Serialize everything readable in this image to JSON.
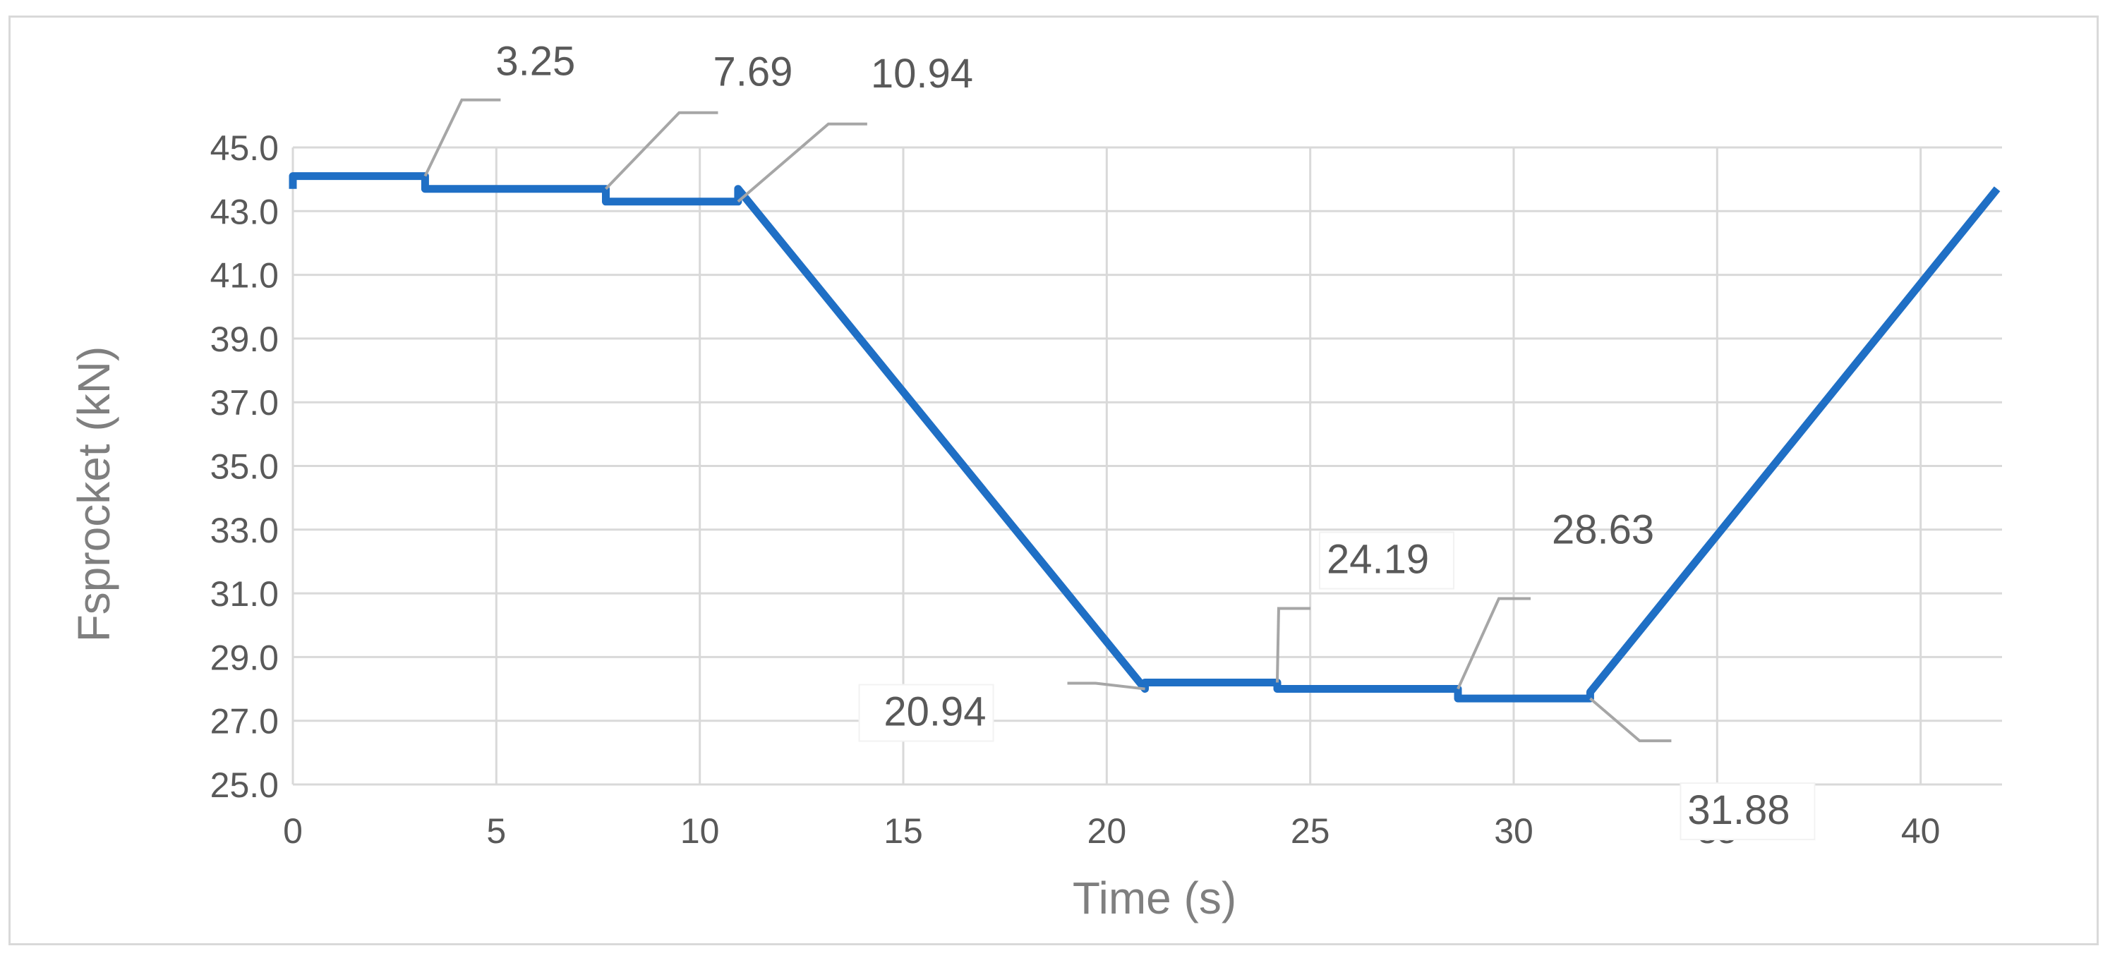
{
  "chart_data": {
    "type": "line",
    "title": "",
    "xlabel": "Time (s)",
    "ylabel": "Fsprocket (kN)",
    "xlim": [
      0,
      42
    ],
    "ylim": [
      25,
      45
    ],
    "x_ticks": [
      0,
      5,
      10,
      15,
      20,
      25,
      30,
      35,
      40
    ],
    "y_ticks": [
      "25.0",
      "27.0",
      "29.0",
      "31.0",
      "33.0",
      "35.0",
      "37.0",
      "39.0",
      "41.0",
      "43.0",
      "45.0"
    ],
    "grid": true,
    "legend": "none",
    "series": [
      {
        "color": "#1f6fc5",
        "x": [
          0,
          0,
          3.25,
          3.25,
          7.69,
          7.69,
          10.94,
          10.94,
          20.94,
          20.94,
          24.19,
          24.19,
          28.63,
          28.63,
          31.88,
          31.88,
          41.88
        ],
        "y": [
          43.7,
          44.1,
          44.1,
          43.7,
          43.7,
          43.3,
          43.3,
          43.7,
          28.0,
          28.2,
          28.2,
          28.0,
          28.0,
          27.7,
          27.7,
          27.9,
          43.7
        ]
      }
    ],
    "annotations": [
      {
        "text": "3.25",
        "x": 3.25,
        "y": 44.1
      },
      {
        "text": "7.69",
        "x": 7.69,
        "y": 43.7
      },
      {
        "text": "10.94",
        "x": 10.94,
        "y": 43.3
      },
      {
        "text": "20.94",
        "x": 20.94,
        "y": 28.0
      },
      {
        "text": "24.19",
        "x": 24.19,
        "y": 28.2
      },
      {
        "text": "28.63",
        "x": 28.63,
        "y": 28.0
      },
      {
        "text": "31.88",
        "x": 31.88,
        "y": 27.7
      }
    ]
  }
}
